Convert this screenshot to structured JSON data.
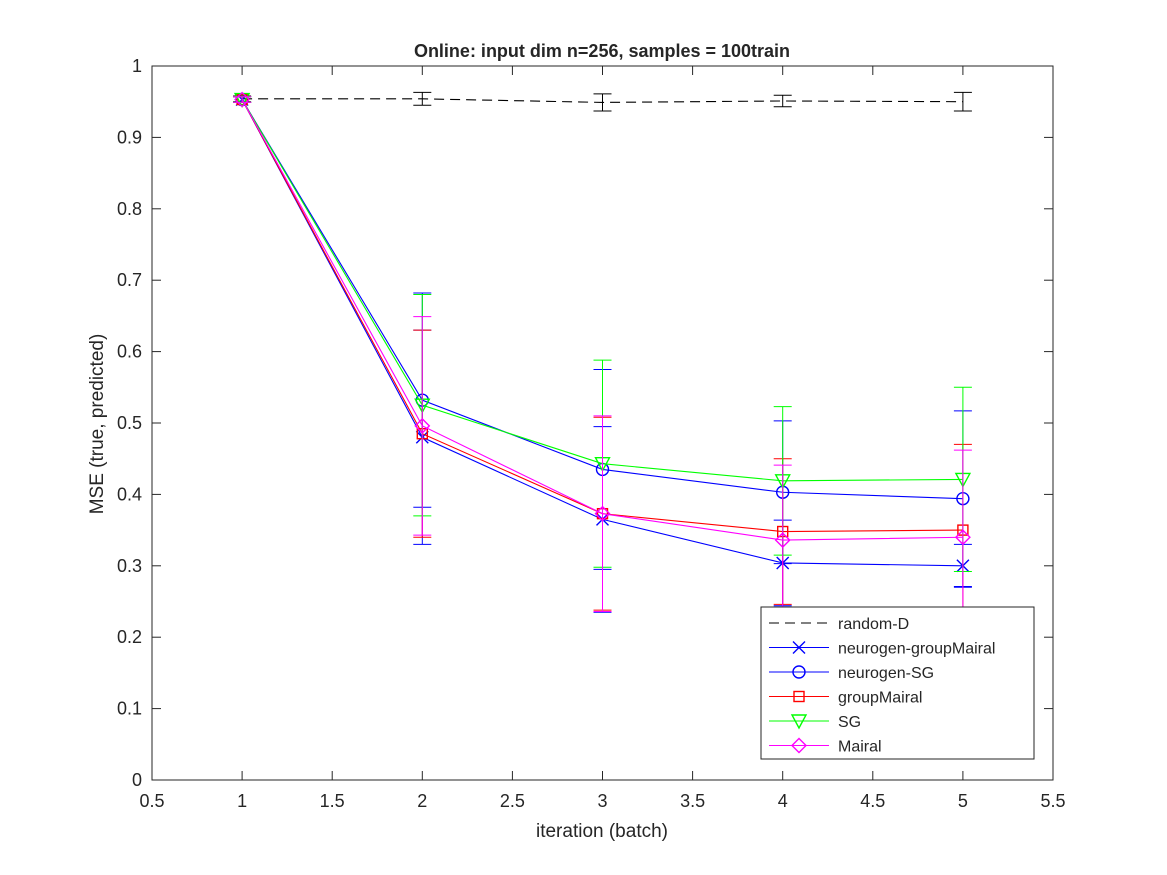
{
  "chart_data": {
    "type": "line",
    "title": "Online:  input dim n=256, samples = 100train",
    "xlabel": "iteration (batch)",
    "ylabel": "MSE (true, predicted)",
    "xlim": [
      0.5,
      5.5
    ],
    "ylim": [
      0,
      1
    ],
    "xticks": [
      "0.5",
      "1",
      "1.5",
      "2",
      "2.5",
      "3",
      "3.5",
      "4",
      "4.5",
      "5",
      "5.5"
    ],
    "yticks": [
      "0",
      "0.1",
      "0.2",
      "0.3",
      "0.4",
      "0.5",
      "0.6",
      "0.7",
      "0.8",
      "0.9",
      "1"
    ],
    "grid": false,
    "legend_position": "bottom-right",
    "x": [
      1,
      2,
      3,
      4,
      5
    ],
    "series": [
      {
        "name": "random-D",
        "color": "#000000",
        "dash": true,
        "marker": "none",
        "values": [
          0.954,
          0.954,
          0.949,
          0.951,
          0.95
        ],
        "error": [
          0.004,
          0.009,
          0.012,
          0.008,
          0.013
        ]
      },
      {
        "name": "neurogen-groupMairal",
        "color": "#0000ff",
        "dash": false,
        "marker": "x",
        "values": [
          0.953,
          0.48,
          0.365,
          0.304,
          0.3
        ],
        "error": [
          0.004,
          0.15,
          0.13,
          0.06,
          0.03
        ]
      },
      {
        "name": "neurogen-SG",
        "color": "#0000ff",
        "dash": false,
        "marker": "circle",
        "values": [
          0.953,
          0.532,
          0.435,
          0.403,
          0.394
        ],
        "error": [
          0.004,
          0.15,
          0.14,
          0.1,
          0.123
        ]
      },
      {
        "name": "groupMairal",
        "color": "#ff0000",
        "dash": false,
        "marker": "square",
        "values": [
          0.953,
          0.485,
          0.373,
          0.348,
          0.35
        ],
        "error": [
          0.004,
          0.145,
          0.135,
          0.102,
          0.12
        ]
      },
      {
        "name": "SG",
        "color": "#00ff00",
        "dash": false,
        "marker": "triangle-down",
        "values": [
          0.953,
          0.525,
          0.443,
          0.419,
          0.421
        ],
        "error": [
          0.004,
          0.155,
          0.145,
          0.104,
          0.129
        ]
      },
      {
        "name": "Mairal",
        "color": "#ff00ff",
        "dash": false,
        "marker": "diamond",
        "values": [
          0.953,
          0.496,
          0.373,
          0.336,
          0.34
        ],
        "error": [
          0.004,
          0.153,
          0.137,
          0.105,
          0.122
        ]
      }
    ]
  }
}
